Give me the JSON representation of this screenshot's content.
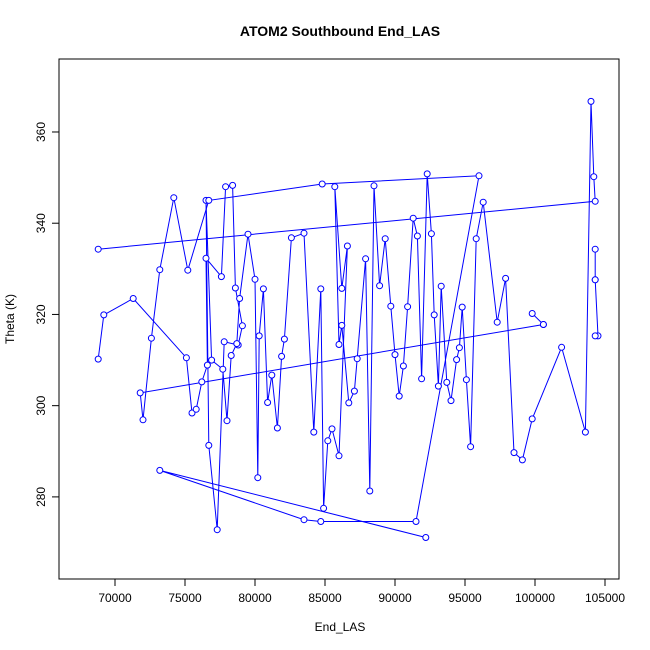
{
  "chart_data": {
    "type": "line",
    "title": "ATOM2 Southbound End_LAS",
    "xlabel": "End_LAS",
    "ylabel": "Theta (K)",
    "xlim": [
      66000,
      106000
    ],
    "ylim": [
      262000,
      376000
    ],
    "x_ticks": [
      70000,
      75000,
      80000,
      85000,
      90000,
      95000,
      100000,
      105000
    ],
    "y_ticks": [
      280,
      300,
      320,
      340,
      360
    ],
    "y_scale_div": 1000,
    "grid": false,
    "legend": "none",
    "marker": "open-circle",
    "color": "#0000ff",
    "series": [
      {
        "x": [
          68800,
          69200,
          71300,
          75100,
          75500,
          75800,
          76200,
          76600,
          76500,
          77600,
          77900,
          78400,
          78600,
          79100,
          78800,
          77800,
          77300,
          76700,
          76500,
          76900,
          77700,
          78000,
          78300,
          78700,
          78900,
          79500,
          80000,
          80200,
          80300,
          80600,
          80900,
          81200,
          81600,
          81900,
          82100,
          82600,
          83500,
          84200,
          84700,
          84900,
          85200,
          85500,
          86000,
          86600,
          86200,
          85700,
          86000,
          86200,
          86700,
          87100,
          87300,
          87900,
          88200,
          88500,
          88900,
          89300,
          89700,
          90000,
          90300,
          90600,
          90900,
          91300,
          91600,
          91900,
          92300,
          92600,
          92800,
          93100,
          93300,
          93700,
          94000,
          94400,
          94600,
          94800,
          95100,
          95400,
          95800,
          96300,
          97300,
          97900,
          98500,
          99100,
          99800,
          101900,
          103600,
          104000,
          104200,
          104300,
          68800
        ],
        "y": [
          310200,
          319900,
          323500,
          310500,
          298400,
          299200,
          305200,
          308900,
          332300,
          328300,
          348000,
          348300,
          325800,
          317500,
          313300,
          314000,
          272800,
          291300,
          345000,
          310000,
          308000,
          296700,
          311000,
          313600,
          323500,
          337600,
          327700,
          284200,
          315300,
          325600,
          300700,
          306700,
          295100,
          310800,
          314600,
          336800,
          337800,
          294200,
          325600,
          277500,
          292300,
          294900,
          289000,
          335000,
          325700,
          348000,
          313400,
          317600,
          300600,
          303200,
          310300,
          332200,
          281300,
          348200,
          326300,
          336600,
          321800,
          311200,
          302100,
          308700,
          321700,
          341100,
          337200,
          305900,
          350800,
          337700,
          319900,
          304300,
          326200,
          305100,
          301100,
          310100,
          312700,
          321600,
          305700,
          291000,
          336600,
          344600,
          318300,
          327900,
          289700,
          288100,
          297100,
          312800,
          294200,
          366700,
          350200,
          344800,
          334300
        ]
      },
      {
        "x": [
          104300,
          104300,
          104300,
          104500,
          104300
        ],
        "y": [
          334300,
          327600,
          327600,
          315300,
          315300
        ]
      },
      {
        "x": [
          99800,
          100600,
          100600,
          71800,
          72000,
          72600,
          73200,
          74200,
          75200,
          76700,
          84800,
          96000,
          91500,
          84700,
          83500,
          73200,
          92200
        ],
        "y": [
          320200,
          317800,
          317800,
          302800,
          296900,
          314800,
          329800,
          345600,
          329700,
          345000,
          348600,
          350400,
          274600,
          274600,
          275000,
          285800,
          271100
        ]
      }
    ]
  }
}
